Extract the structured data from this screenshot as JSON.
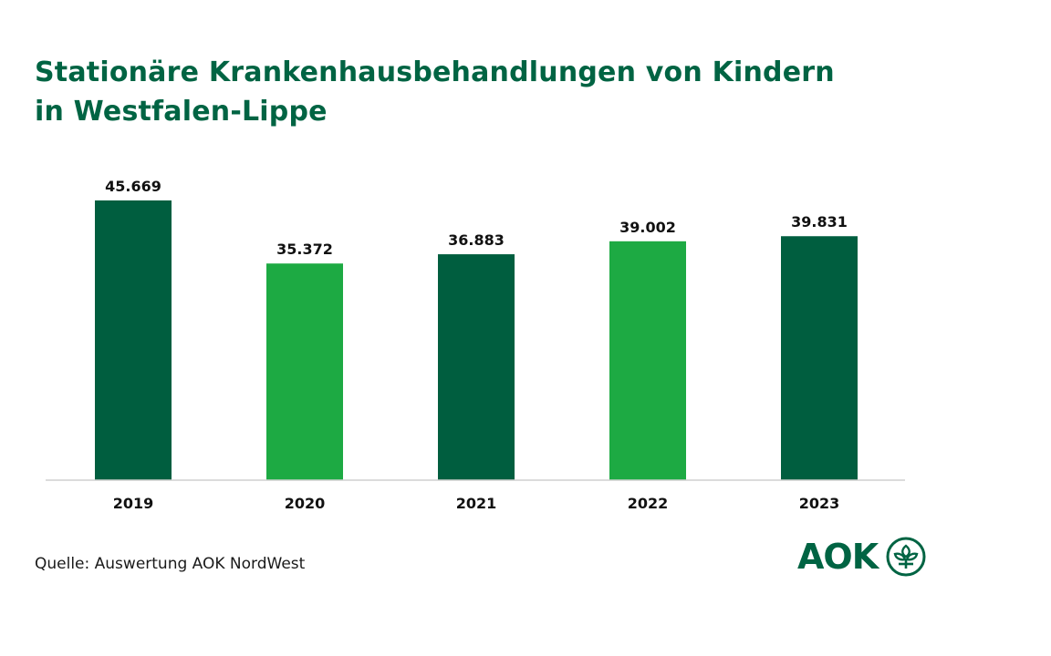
{
  "title_lines": [
    "Stationäre Krankenhausbehandlungen von Kindern",
    "in Westfalen-Lippe"
  ],
  "source": "Quelle: Auswertung AOK NordWest",
  "logo_text": "AOK",
  "colors": {
    "dark_green": "#005E3F",
    "light_green": "#1DAA43",
    "title": "#006443",
    "axis": "#cfcfcf"
  },
  "chart_data": {
    "type": "bar",
    "categories": [
      "2019",
      "2020",
      "2021",
      "2022",
      "2023"
    ],
    "values": [
      45669,
      35372,
      36883,
      39002,
      39831
    ],
    "value_labels": [
      "45.669",
      "35.372",
      "36.883",
      "39.002",
      "39.831"
    ],
    "bar_colors": [
      "#005E3F",
      "#1DAA43",
      "#005E3F",
      "#1DAA43",
      "#005E3F"
    ],
    "title": "Stationäre Krankenhausbehandlungen von Kindern in Westfalen-Lippe",
    "xlabel": "",
    "ylabel": "",
    "ylim": [
      0,
      45669
    ],
    "grid": false,
    "legend": "none"
  }
}
